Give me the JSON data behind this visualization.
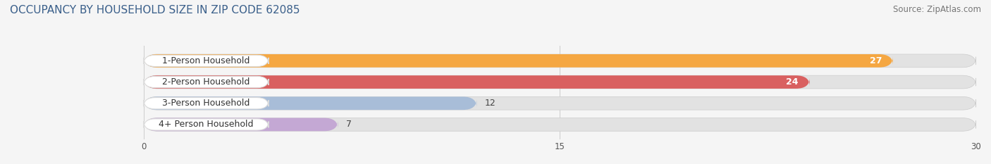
{
  "title": "OCCUPANCY BY HOUSEHOLD SIZE IN ZIP CODE 62085",
  "source": "Source: ZipAtlas.com",
  "categories": [
    "1-Person Household",
    "2-Person Household",
    "3-Person Household",
    "4+ Person Household"
  ],
  "values": [
    27,
    24,
    12,
    7
  ],
  "bar_colors": [
    "#F5A742",
    "#D96060",
    "#A8BDD8",
    "#C4A8D4"
  ],
  "label_colors": [
    "white",
    "white",
    "#555555",
    "#555555"
  ],
  "xlim": [
    0,
    30
  ],
  "xticks": [
    0,
    15,
    30
  ],
  "background_color": "#f5f5f5",
  "bar_bg_color": "#e2e2e2",
  "title_color": "#3a5f8a",
  "title_fontsize": 11,
  "source_fontsize": 8.5,
  "label_fontsize": 9,
  "value_fontsize": 9,
  "bar_height": 0.62,
  "figsize": [
    14.06,
    2.33
  ]
}
